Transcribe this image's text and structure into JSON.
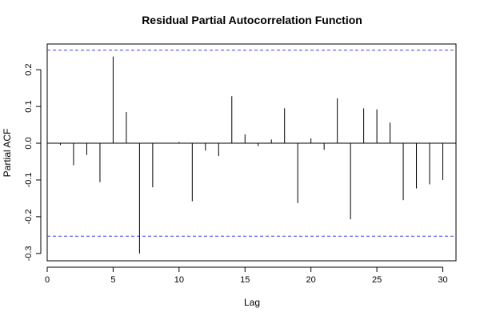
{
  "chart_data": {
    "type": "bar",
    "title": "Residual Partial Autocorrelation Function",
    "xlabel": "Lag",
    "ylabel": "Partial ACF",
    "xlim": [
      0,
      31
    ],
    "ylim": [
      -0.32,
      0.27
    ],
    "x_ticks": [
      0,
      5,
      10,
      15,
      20,
      25,
      30
    ],
    "y_ticks": [
      -0.3,
      -0.2,
      -0.1,
      0.0,
      0.1,
      0.2
    ],
    "confidence_bound": 0.253,
    "confidence_color": "#4444ee",
    "lags": [
      1,
      2,
      3,
      4,
      5,
      6,
      7,
      8,
      9,
      10,
      11,
      12,
      13,
      14,
      15,
      16,
      17,
      18,
      19,
      20,
      21,
      22,
      23,
      24,
      25,
      26,
      27,
      28,
      29,
      30
    ],
    "values": [
      -0.005,
      -0.06,
      -0.032,
      -0.106,
      0.236,
      0.085,
      -0.3,
      -0.12,
      0.0,
      0.003,
      -0.158,
      -0.02,
      -0.035,
      0.128,
      0.024,
      -0.008,
      0.01,
      0.095,
      -0.163,
      0.013,
      -0.018,
      0.122,
      -0.207,
      0.095,
      0.092,
      0.056,
      -0.155,
      -0.123,
      -0.112,
      -0.1
    ],
    "grid": false,
    "legend": "none"
  }
}
